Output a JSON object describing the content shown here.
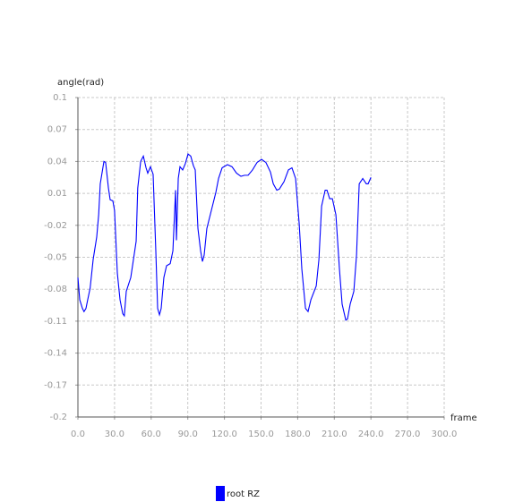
{
  "chart_data": {
    "type": "line",
    "y_label": "angle(rad)",
    "x_label": "frame",
    "xlim": [
      0,
      300
    ],
    "xticks": [
      {
        "value": 0,
        "label": "0.0"
      },
      {
        "value": 30,
        "label": "30.0"
      },
      {
        "value": 60,
        "label": "60.0"
      },
      {
        "value": 90,
        "label": "90.0"
      },
      {
        "value": 120,
        "label": "120.0"
      },
      {
        "value": 150,
        "label": "150.0"
      },
      {
        "value": 180,
        "label": "180.0"
      },
      {
        "value": 210,
        "label": "210.0"
      },
      {
        "value": 240,
        "label": "240.0"
      },
      {
        "value": 270,
        "label": "270.0"
      },
      {
        "value": 300,
        "label": "300.0"
      }
    ],
    "ylim": [
      -0.2,
      0.1
    ],
    "yticks": [
      0.1,
      0.07,
      0.04,
      0.01,
      -0.02,
      -0.05,
      -0.08,
      -0.11,
      -0.14,
      -0.17,
      -0.2
    ],
    "grid": true,
    "x": [
      0,
      1.5,
      3.7,
      5,
      6.6,
      8,
      10,
      12.5,
      15.4,
      17,
      18.3,
      21.3,
      22.7,
      25,
      26.4,
      28.6,
      30,
      32.3,
      34.5,
      36.7,
      38,
      39.6,
      43.3,
      45.5,
      47.7,
      49,
      51.4,
      53.6,
      55.8,
      57.2,
      59.4,
      61.6,
      63.8,
      65.3,
      66.8,
      68.2,
      70.4,
      72.6,
      75.6,
      77.8,
      80,
      80.7,
      82.2,
      83.6,
      85.8,
      88,
      90.2,
      92.4,
      94.6,
      96.1,
      98.3,
      100.5,
      102,
      103.4,
      105.6,
      109.3,
      113,
      115.2,
      118.1,
      122.5,
      126.2,
      129.9,
      133.5,
      136.5,
      139.4,
      143,
      146.7,
      150.4,
      154,
      157.7,
      160,
      162.9,
      165,
      168.8,
      172.4,
      175.3,
      178.3,
      181.2,
      183.4,
      186.4,
      188.5,
      190.8,
      195.2,
      197.4,
      199.6,
      202.5,
      204,
      206.2,
      208.4,
      211.3,
      214.2,
      216.4,
      219.4,
      220.8,
      223,
      226,
      228.2,
      230.4,
      233.3,
      236.2,
      237.7,
      240
    ],
    "series": [
      {
        "name": "root RZ",
        "color": "#0000ff",
        "values": [
          -0.069,
          -0.09,
          -0.098,
          -0.101,
          -0.098,
          -0.09,
          -0.079,
          -0.052,
          -0.031,
          -0.01,
          0.019,
          0.04,
          0.039,
          0.015,
          0.004,
          0.003,
          -0.006,
          -0.065,
          -0.09,
          -0.103,
          -0.105,
          -0.082,
          -0.069,
          -0.052,
          -0.035,
          0.015,
          0.04,
          0.045,
          0.034,
          0.029,
          0.035,
          0.028,
          -0.044,
          -0.098,
          -0.104,
          -0.098,
          -0.069,
          -0.058,
          -0.056,
          -0.044,
          0.013,
          -0.034,
          0.024,
          0.035,
          0.032,
          0.038,
          0.047,
          0.045,
          0.036,
          0.032,
          -0.023,
          -0.044,
          -0.054,
          -0.048,
          -0.023,
          -0.006,
          0.011,
          0.024,
          0.034,
          0.037,
          0.035,
          0.029,
          0.026,
          0.027,
          0.027,
          0.032,
          0.039,
          0.042,
          0.039,
          0.03,
          0.019,
          0.013,
          0.014,
          0.021,
          0.032,
          0.034,
          0.024,
          -0.018,
          -0.061,
          -0.098,
          -0.101,
          -0.09,
          -0.077,
          -0.052,
          -0.002,
          0.013,
          0.013,
          0.005,
          0.005,
          -0.01,
          -0.061,
          -0.094,
          -0.109,
          -0.108,
          -0.094,
          -0.082,
          -0.048,
          0.019,
          0.024,
          0.019,
          0.019,
          0.025
        ]
      }
    ]
  }
}
